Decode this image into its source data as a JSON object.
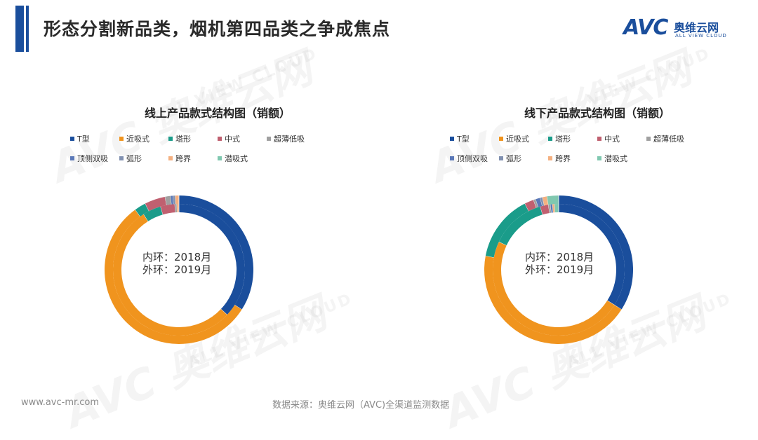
{
  "header": {
    "title": "形态分割新品类，烟机第四品类之争成焦点",
    "logo_avc": "AVC",
    "logo_cn": "奥维云网",
    "logo_en": "ALL VIEW CLOUD"
  },
  "watermark": {
    "big": "AVC 奥维云网",
    "small": "ALL VIEW CLOUD"
  },
  "colors": {
    "accent": "#1a4e9c",
    "T型": "#1a4e9c",
    "近吸式": "#f0941e",
    "塔形": "#1a9c8a",
    "中式": "#c06070",
    "超薄低吸": "#a0a0a0",
    "顶侧双吸": "#5a78b8",
    "弧形": "#8090b0",
    "跨界": "#f4b080",
    "潜吸式": "#80c8b0"
  },
  "chart_data": [
    {
      "type": "pie",
      "subtype": "double-donut",
      "title": "线上产品款式结构图（销额）",
      "center_label_inner": "内环：2018月",
      "center_label_outer": "外环：2019月",
      "categories": [
        "T型",
        "近吸式",
        "塔形",
        "中式",
        "超薄低吸",
        "顶侧双吸",
        "弧形",
        "跨界",
        "潜吸式"
      ],
      "series": [
        {
          "name": "内环：2018月",
          "values": [
            0.37,
            0.54,
            0.045,
            0.035,
            0.005,
            0.0,
            0.0,
            0.005,
            0.0
          ]
        },
        {
          "name": "外环：2019月",
          "values": [
            0.34,
            0.56,
            0.025,
            0.045,
            0.012,
            0.005,
            0.005,
            0.008,
            0.0
          ]
        }
      ],
      "legend_position": "top"
    },
    {
      "type": "pie",
      "subtype": "double-donut",
      "title": "线下产品款式结构图（销额）",
      "center_label_inner": "内环：2018月",
      "center_label_outer": "外环：2019月",
      "categories": [
        "T型",
        "近吸式",
        "塔形",
        "中式",
        "超薄低吸",
        "顶侧双吸",
        "弧形",
        "跨界",
        "潜吸式"
      ],
      "series": [
        {
          "name": "内环：2018月",
          "values": [
            0.34,
            0.48,
            0.135,
            0.02,
            0.005,
            0.005,
            0.0,
            0.005,
            0.01
          ]
        },
        {
          "name": "外环：2019月",
          "values": [
            0.34,
            0.44,
            0.145,
            0.02,
            0.005,
            0.01,
            0.005,
            0.01,
            0.025
          ]
        }
      ],
      "legend_position": "top"
    }
  ],
  "footer": {
    "url": "www.avc-mr.com",
    "source": "数据来源：奥维云网（AVC)全渠道监测数据"
  }
}
